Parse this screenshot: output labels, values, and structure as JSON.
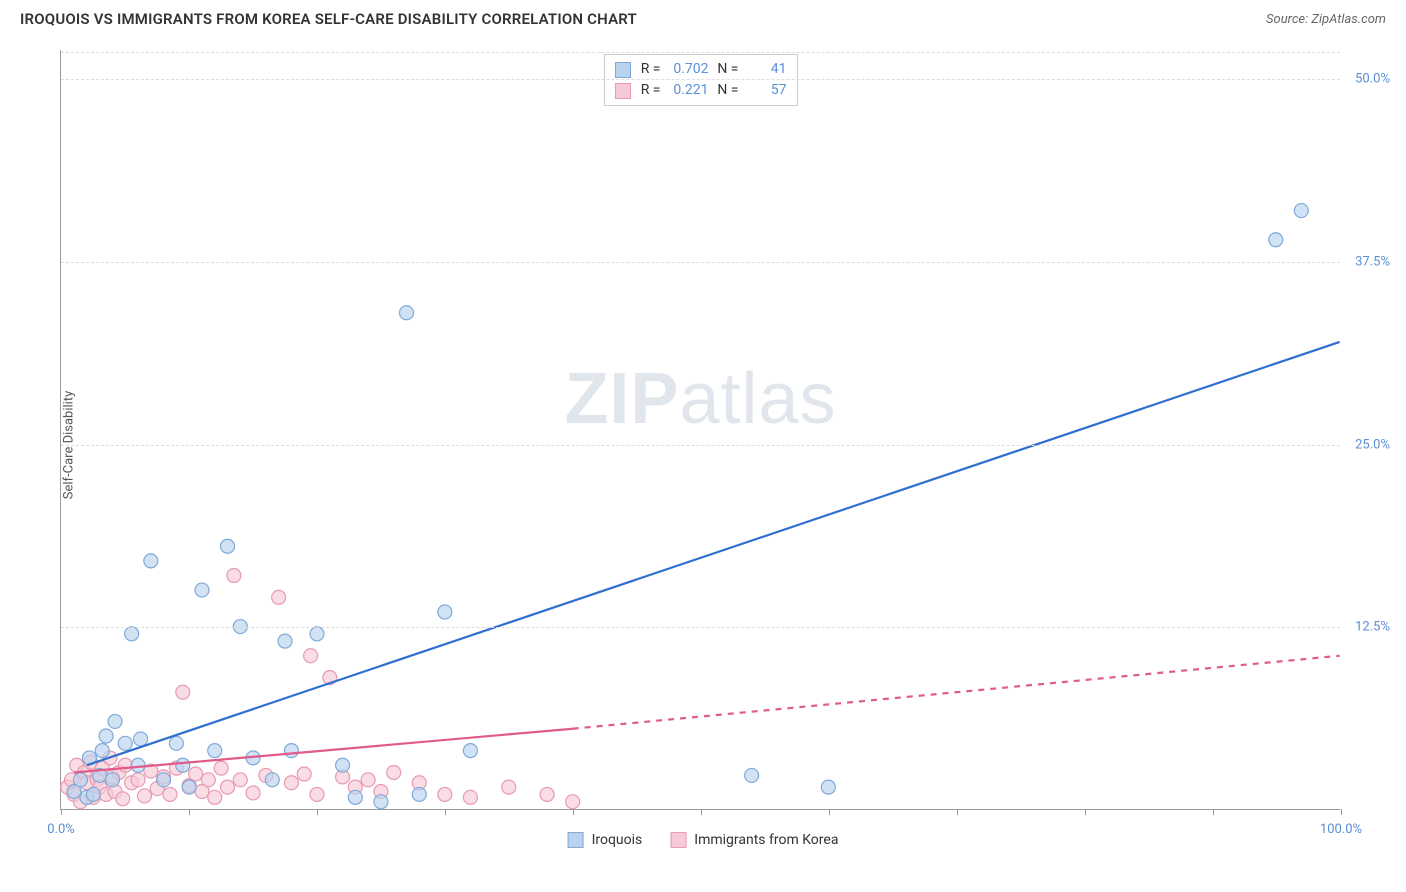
{
  "header": {
    "title": "IROQUOIS VS IMMIGRANTS FROM KOREA SELF-CARE DISABILITY CORRELATION CHART",
    "source": "Source: ZipAtlas.com"
  },
  "axes": {
    "y_label": "Self-Care Disability",
    "xlim": [
      0,
      100
    ],
    "ylim": [
      0,
      52
    ],
    "x_ticks": [
      0,
      10,
      20,
      30,
      40,
      50,
      60,
      70,
      80,
      90,
      100
    ],
    "x_tick_labels": {
      "0": "0.0%",
      "100": "100.0%"
    },
    "y_gridlines": [
      12.5,
      25.0,
      37.5,
      50.0
    ],
    "y_tick_labels": [
      "12.5%",
      "25.0%",
      "37.5%",
      "50.0%"
    ]
  },
  "series": {
    "s1": {
      "name": "Iroquois",
      "color_fill": "#b9d3ef",
      "color_stroke": "#7fa9d8",
      "line_color": "#2f6fd0",
      "r_value": "0.702",
      "n_value": "41",
      "points": [
        [
          1.0,
          1.2
        ],
        [
          1.5,
          2.0
        ],
        [
          2.0,
          0.8
        ],
        [
          2.2,
          3.5
        ],
        [
          2.5,
          1.0
        ],
        [
          3.0,
          2.3
        ],
        [
          3.2,
          4.0
        ],
        [
          3.5,
          5.0
        ],
        [
          4.0,
          2.0
        ],
        [
          4.2,
          6.0
        ],
        [
          5.0,
          4.5
        ],
        [
          5.5,
          12.0
        ],
        [
          6.0,
          3.0
        ],
        [
          6.2,
          4.8
        ],
        [
          7.0,
          17.0
        ],
        [
          8.0,
          2.0
        ],
        [
          9.0,
          4.5
        ],
        [
          9.5,
          3.0
        ],
        [
          10.0,
          1.5
        ],
        [
          11.0,
          15.0
        ],
        [
          12.0,
          4.0
        ],
        [
          13.0,
          18.0
        ],
        [
          14.0,
          12.5
        ],
        [
          15.0,
          3.5
        ],
        [
          16.5,
          2.0
        ],
        [
          17.5,
          11.5
        ],
        [
          18.0,
          4.0
        ],
        [
          20.0,
          12.0
        ],
        [
          22.0,
          3.0
        ],
        [
          23.0,
          0.8
        ],
        [
          25.0,
          0.5
        ],
        [
          27.0,
          34.0
        ],
        [
          28.0,
          1.0
        ],
        [
          30.0,
          13.5
        ],
        [
          32.0,
          4.0
        ],
        [
          54.0,
          2.3
        ],
        [
          60.0,
          1.5
        ],
        [
          95.0,
          39.0
        ],
        [
          97.0,
          41.0
        ]
      ],
      "trend": {
        "x1": 2,
        "y1": 3,
        "x2": 100,
        "y2": 32,
        "dash": "none"
      }
    },
    "s2": {
      "name": "Immigrants from Korea",
      "color_fill": "#f6c9d6",
      "color_stroke": "#e79ab3",
      "line_color": "#e05a8a",
      "r_value": "0.221",
      "n_value": "57",
      "points": [
        [
          0.5,
          1.5
        ],
        [
          0.8,
          2.0
        ],
        [
          1.0,
          1.0
        ],
        [
          1.2,
          3.0
        ],
        [
          1.5,
          0.5
        ],
        [
          1.8,
          2.5
        ],
        [
          2.0,
          1.8
        ],
        [
          2.3,
          3.2
        ],
        [
          2.5,
          0.8
        ],
        [
          2.8,
          2.0
        ],
        [
          3.0,
          1.5
        ],
        [
          3.2,
          2.8
        ],
        [
          3.5,
          1.0
        ],
        [
          3.8,
          3.5
        ],
        [
          4.0,
          2.2
        ],
        [
          4.2,
          1.2
        ],
        [
          4.5,
          2.5
        ],
        [
          4.8,
          0.7
        ],
        [
          5.0,
          3.0
        ],
        [
          5.5,
          1.8
        ],
        [
          6.0,
          2.0
        ],
        [
          6.5,
          0.9
        ],
        [
          7.0,
          2.6
        ],
        [
          7.5,
          1.4
        ],
        [
          8.0,
          2.2
        ],
        [
          8.5,
          1.0
        ],
        [
          9.0,
          2.8
        ],
        [
          9.5,
          8.0
        ],
        [
          10.0,
          1.6
        ],
        [
          10.5,
          2.4
        ],
        [
          11.0,
          1.2
        ],
        [
          11.5,
          2.0
        ],
        [
          12.0,
          0.8
        ],
        [
          12.5,
          2.8
        ],
        [
          13.0,
          1.5
        ],
        [
          13.5,
          16.0
        ],
        [
          14.0,
          2.0
        ],
        [
          15.0,
          1.1
        ],
        [
          16.0,
          2.3
        ],
        [
          17.0,
          14.5
        ],
        [
          18.0,
          1.8
        ],
        [
          19.0,
          2.4
        ],
        [
          19.5,
          10.5
        ],
        [
          20.0,
          1.0
        ],
        [
          21.0,
          9.0
        ],
        [
          22.0,
          2.2
        ],
        [
          23.0,
          1.5
        ],
        [
          24.0,
          2.0
        ],
        [
          25.0,
          1.2
        ],
        [
          26.0,
          2.5
        ],
        [
          28.0,
          1.8
        ],
        [
          30.0,
          1.0
        ],
        [
          32.0,
          0.8
        ],
        [
          35.0,
          1.5
        ],
        [
          38.0,
          1.0
        ],
        [
          40.0,
          0.5
        ]
      ],
      "trend_solid": {
        "x1": 1,
        "y1": 2.5,
        "x2": 40,
        "y2": 5.5
      },
      "trend_dash": {
        "x1": 40,
        "y1": 5.5,
        "x2": 100,
        "y2": 10.5
      }
    }
  },
  "legend": {
    "r_label": "R =",
    "n_label": "N ="
  },
  "watermark": {
    "zip": "ZIP",
    "atlas": "atlas"
  },
  "style": {
    "marker_radius": 7,
    "marker_opacity": 0.65,
    "line_width": 2.2,
    "background": "#ffffff",
    "grid_color": "#dddddd"
  }
}
